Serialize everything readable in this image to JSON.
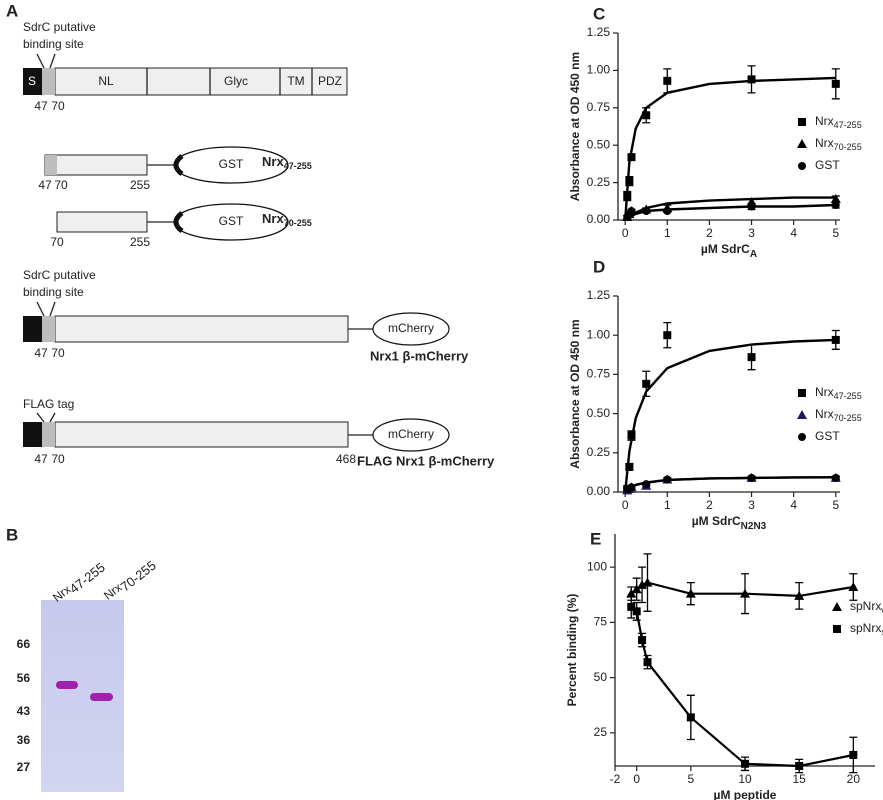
{
  "panel_a": {
    "label": "A",
    "constructs": [
      {
        "annotation": [
          "SdrC  putative",
          "binding site"
        ],
        "domains": [
          "S",
          "NL",
          "Glyc",
          "TM",
          "PDZ"
        ],
        "positions": [
          "47",
          "70"
        ]
      },
      {
        "tag": "GST",
        "name": {
          "main": "Nrx",
          "sub": "47-255"
        },
        "positions": [
          "47",
          "70",
          "255"
        ]
      },
      {
        "tag": "GST",
        "name": {
          "main": "Nrx",
          "sub": "70-255"
        },
        "positions": [
          "70",
          "255"
        ]
      },
      {
        "annotation": [
          "SdrC  putative",
          "binding site"
        ],
        "tag": "mCherry",
        "name": "Nrx1 β-mCherry",
        "positions": [
          "47",
          "70"
        ]
      },
      {
        "annotation": [
          "FLAG tag"
        ],
        "tag": "mCherry",
        "name": "FLAG Nrx1 β-mCherry",
        "positions": [
          "47",
          "70",
          "468"
        ]
      }
    ]
  },
  "panel_b": {
    "label": "B",
    "lanes": [
      {
        "main": "Nrx",
        "sub": "47-255"
      },
      {
        "main": "Nrx",
        "sub": "70-255"
      }
    ],
    "markers": [
      66,
      56,
      43,
      36,
      27
    ]
  },
  "chart_data": [
    {
      "type": "scatter",
      "panel_label": "C",
      "y_label": "Absorbance at OD 450 nm",
      "x_label": {
        "main": "µM SdrC",
        "sub": "A"
      },
      "xlim": [
        -0.17,
        5.1
      ],
      "ylim": [
        0,
        1.25
      ],
      "xticks": [
        0,
        1,
        2,
        3,
        4,
        5
      ],
      "yticks": [
        {
          "value": 0,
          "label": "0.00"
        },
        {
          "value": 0.25,
          "label": "0.25"
        },
        {
          "value": 0.5,
          "label": "0.50"
        },
        {
          "value": 0.75,
          "label": "0.75"
        },
        {
          "value": 1,
          "label": "1.00"
        },
        {
          "value": 1.25,
          "label": "1.25"
        }
      ],
      "legend": "right",
      "x": [
        0.05,
        0.1,
        0.15,
        0.5,
        1,
        3,
        5
      ],
      "fit_x": [
        0,
        0.1,
        0.25,
        0.5,
        1,
        2,
        3,
        4,
        5
      ],
      "series": [
        {
          "name": {
            "main": "Nrx",
            "sub": "47-255"
          },
          "color": "#000000",
          "marker": "square",
          "values": [
            0.16,
            0.26,
            0.42,
            0.7,
            0.93,
            0.94,
            0.91
          ],
          "errors": [
            0.03,
            0.03,
            0.02,
            0.05,
            0.08,
            0.09,
            0.1
          ],
          "fit": [
            0,
            0.39,
            0.61,
            0.75,
            0.85,
            0.91,
            0.93,
            0.94,
            0.95
          ]
        },
        {
          "name": {
            "main": "Nrx",
            "sub": "70-255"
          },
          "color": "#000000",
          "marker": "triangle",
          "values": [
            0.02,
            0.04,
            0.06,
            0.07,
            0.08,
            0.12,
            0.14
          ],
          "errors": [
            0.01,
            0.01,
            0.01,
            0.01,
            0.02,
            0.02,
            0.02
          ],
          "fit": [
            0,
            0.02,
            0.05,
            0.08,
            0.11,
            0.13,
            0.14,
            0.15,
            0.15
          ]
        },
        {
          "name": {
            "main": "GST",
            "sub": ""
          },
          "color": "#000000",
          "marker": "circle",
          "values": [
            0.02,
            0.04,
            0.06,
            0.06,
            0.06,
            0.09,
            0.1
          ],
          "errors": [
            0.01,
            0.01,
            0.01,
            0.01,
            0.01,
            0.02,
            0.02
          ],
          "fit": [
            0,
            0.02,
            0.04,
            0.06,
            0.07,
            0.08,
            0.09,
            0.09,
            0.1
          ]
        }
      ]
    },
    {
      "type": "scatter",
      "panel_label": "D",
      "y_label": "Absorbance at OD 450 nm",
      "x_label": {
        "main": "µM SdrC",
        "sub": "N2N3"
      },
      "xlim": [
        -0.17,
        5.1
      ],
      "ylim": [
        0,
        1.25
      ],
      "xticks": [
        0,
        1,
        2,
        3,
        4,
        5
      ],
      "yticks": [
        {
          "value": 0,
          "label": "0.00"
        },
        {
          "value": 0.25,
          "label": "0.25"
        },
        {
          "value": 0.5,
          "label": "0.50"
        },
        {
          "value": 0.75,
          "label": "0.75"
        },
        {
          "value": 1,
          "label": "1.00"
        },
        {
          "value": 1.25,
          "label": "1.25"
        }
      ],
      "legend": "right",
      "x": [
        0.05,
        0.1,
        0.15,
        0.5,
        1,
        3,
        5
      ],
      "fit_x": [
        0,
        0.1,
        0.25,
        0.5,
        1,
        2,
        3,
        4,
        5
      ],
      "series": [
        {
          "name": {
            "main": "Nrx",
            "sub": "47-255"
          },
          "color": "#000000",
          "marker": "square",
          "values": [
            0.02,
            0.16,
            0.36,
            0.69,
            1.0,
            0.86,
            0.97
          ],
          "errors": [
            0.01,
            0.02,
            0.03,
            0.08,
            0.08,
            0.08,
            0.06
          ],
          "fit": [
            0,
            0.26,
            0.47,
            0.64,
            0.79,
            0.9,
            0.94,
            0.96,
            0.97
          ]
        },
        {
          "name": {
            "main": "Nrx",
            "sub": "70-255"
          },
          "color": "#1a1a5e",
          "marker": "triangle",
          "values": [
            0.01,
            0.02,
            0.03,
            0.04,
            0.08,
            0.09,
            0.09
          ],
          "errors": [
            0.01,
            0.01,
            0.01,
            0.01,
            0.01,
            0.01,
            0.01
          ],
          "fit": [
            0,
            0.025,
            0.045,
            0.06,
            0.077,
            0.087,
            0.09,
            0.093,
            0.094
          ]
        },
        {
          "name": {
            "main": "GST",
            "sub": ""
          },
          "color": "#000000",
          "marker": "circle",
          "values": [
            0.02,
            0.02,
            0.03,
            0.05,
            0.08,
            0.09,
            0.09
          ],
          "errors": [
            0.01,
            0.01,
            0.01,
            0.01,
            0.01,
            0.01,
            0.01
          ],
          "fit": [
            0,
            0.025,
            0.045,
            0.06,
            0.077,
            0.087,
            0.09,
            0.093,
            0.094
          ]
        }
      ]
    },
    {
      "type": "line",
      "panel_label": "E",
      "y_label": "Percent binding (%)",
      "x_label": {
        "main": "µM peptide",
        "sub": ""
      },
      "xlim": [
        -2,
        22
      ],
      "ylim": [
        10,
        115
      ],
      "xticks": [
        -2,
        0,
        5,
        10,
        15,
        20
      ],
      "yticks": [
        25,
        50,
        75,
        100
      ],
      "legend": "right",
      "x": [
        -0.5,
        0,
        0.5,
        1,
        5,
        10,
        15,
        20
      ],
      "series": [
        {
          "name": {
            "main": "spNrx",
            "sub": "wt"
          },
          "color": "#000000",
          "marker": "triangle",
          "values": [
            88,
            90,
            92,
            93,
            88,
            88,
            87,
            91
          ],
          "errors": [
            3,
            5,
            8,
            13,
            5,
            9,
            6,
            6
          ]
        },
        {
          "name": {
            "main": "spNrx",
            "sub": "scr"
          },
          "color": "#000000",
          "marker": "square",
          "values": [
            82,
            80,
            67,
            57,
            32,
            11,
            10,
            15
          ],
          "errors": [
            5,
            4,
            3,
            3,
            10,
            3,
            3,
            8
          ]
        }
      ]
    }
  ]
}
